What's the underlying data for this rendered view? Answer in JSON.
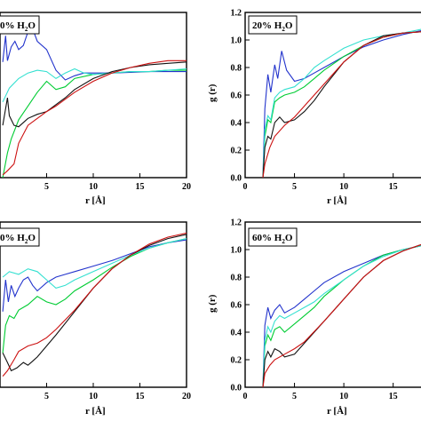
{
  "chart_data": [
    {
      "type": "line",
      "panel_label": "0% H",
      "panel_sub": "2",
      "panel_suffix": "O",
      "xlabel": "r [Å]",
      "ylabel": "",
      "xlim": [
        0,
        20
      ],
      "ylim": [
        0,
        1.2
      ],
      "xticks": [
        "5",
        "10",
        "15",
        "20"
      ],
      "yticks": [],
      "series": [
        {
          "color": "#2233cc",
          "x": [
            0.3,
            0.6,
            0.8,
            1.2,
            1.6,
            2.0,
            2.5,
            3.0,
            3.5,
            4.0,
            5.0,
            6.0,
            7.0,
            8.0,
            9.0,
            10.0,
            12.0,
            14.0,
            16.0,
            18.0,
            20.0
          ],
          "y": [
            0.84,
            1.03,
            0.85,
            0.95,
            0.99,
            0.93,
            0.96,
            1.06,
            1.08,
            0.99,
            0.93,
            0.78,
            0.71,
            0.74,
            0.76,
            0.76,
            0.76,
            0.765,
            0.77,
            0.77,
            0.77
          ]
        },
        {
          "color": "#00cc33",
          "x": [
            0.3,
            0.8,
            1.2,
            2.0,
            3.0,
            4.0,
            5.0,
            6.0,
            7.0,
            8.0,
            10.0,
            12.0,
            14.0,
            16.0,
            18.0,
            20.0
          ],
          "y": [
            0.0,
            0.18,
            0.28,
            0.42,
            0.52,
            0.62,
            0.7,
            0.64,
            0.66,
            0.72,
            0.75,
            0.76,
            0.77,
            0.77,
            0.78,
            0.78
          ]
        },
        {
          "color": "#33e0d0",
          "x": [
            0.3,
            1.0,
            2.0,
            3.0,
            4.0,
            5.0,
            6.0,
            7.0,
            8.0,
            9.0,
            10.0,
            12.0,
            14.0,
            16.0,
            18.0,
            20.0
          ],
          "y": [
            0.55,
            0.65,
            0.72,
            0.76,
            0.78,
            0.77,
            0.72,
            0.76,
            0.79,
            0.76,
            0.75,
            0.76,
            0.77,
            0.77,
            0.78,
            0.79
          ]
        },
        {
          "color": "#111111",
          "x": [
            0.3,
            0.8,
            1.0,
            1.5,
            2.0,
            3.0,
            4.0,
            5.0,
            6.0,
            7.0,
            8.0,
            10.0,
            12.0,
            14.0,
            16.0,
            18.0,
            20.0
          ],
          "y": [
            0.38,
            0.58,
            0.45,
            0.38,
            0.37,
            0.43,
            0.46,
            0.48,
            0.53,
            0.58,
            0.64,
            0.72,
            0.77,
            0.8,
            0.82,
            0.83,
            0.84
          ]
        },
        {
          "color": "#cc1111",
          "x": [
            0.3,
            0.8,
            1.5,
            2.0,
            3.0,
            4.0,
            5.0,
            6.0,
            7.0,
            8.0,
            10.0,
            12.0,
            14.0,
            16.0,
            18.0,
            20.0
          ],
          "y": [
            0.02,
            0.05,
            0.1,
            0.25,
            0.38,
            0.43,
            0.48,
            0.52,
            0.57,
            0.62,
            0.7,
            0.76,
            0.8,
            0.83,
            0.85,
            0.85
          ]
        }
      ]
    },
    {
      "type": "line",
      "panel_label": "20% H",
      "panel_sub": "2",
      "panel_suffix": "O",
      "xlabel": "r [Å]",
      "ylabel": "g (r)",
      "xlim": [
        0,
        18
      ],
      "ylim": [
        0,
        1.2
      ],
      "xticks": [
        "0",
        "5",
        "10",
        "15"
      ],
      "yticks": [
        "0.0",
        "0.2",
        "0.4",
        "0.6",
        "0.8",
        "1.0",
        "1.2"
      ],
      "series": [
        {
          "color": "#2233cc",
          "x": [
            1.8,
            2.0,
            2.3,
            2.6,
            3.0,
            3.3,
            3.7,
            4.2,
            5.0,
            6.0,
            7.0,
            8.0,
            10.0,
            12.0,
            14.0,
            16.0,
            18.0
          ],
          "y": [
            0.0,
            0.5,
            0.75,
            0.62,
            0.82,
            0.72,
            0.92,
            0.78,
            0.7,
            0.72,
            0.76,
            0.8,
            0.88,
            0.95,
            1.0,
            1.04,
            1.07
          ]
        },
        {
          "color": "#00cc33",
          "x": [
            1.8,
            2.0,
            2.3,
            2.6,
            3.0,
            3.5,
            4.0,
            5.0,
            6.0,
            7.0,
            8.0,
            10.0,
            12.0,
            14.0,
            16.0,
            18.0
          ],
          "y": [
            0.0,
            0.3,
            0.42,
            0.4,
            0.55,
            0.58,
            0.6,
            0.62,
            0.66,
            0.72,
            0.78,
            0.88,
            0.96,
            1.02,
            1.05,
            1.06
          ]
        },
        {
          "color": "#33e0d0",
          "x": [
            1.8,
            2.0,
            2.3,
            2.6,
            3.0,
            3.5,
            4.0,
            5.0,
            6.0,
            7.0,
            8.0,
            10.0,
            12.0,
            14.0,
            16.0,
            18.0
          ],
          "y": [
            0.0,
            0.35,
            0.45,
            0.42,
            0.58,
            0.62,
            0.64,
            0.66,
            0.72,
            0.8,
            0.85,
            0.94,
            1.0,
            1.03,
            1.05,
            1.08
          ]
        },
        {
          "color": "#111111",
          "x": [
            1.8,
            2.0,
            2.3,
            2.6,
            3.0,
            3.5,
            4.0,
            5.0,
            6.0,
            7.0,
            8.0,
            10.0,
            12.0,
            14.0,
            16.0,
            18.0
          ],
          "y": [
            0.0,
            0.22,
            0.3,
            0.28,
            0.4,
            0.44,
            0.4,
            0.42,
            0.48,
            0.56,
            0.66,
            0.84,
            0.96,
            1.03,
            1.05,
            1.06
          ]
        },
        {
          "color": "#cc1111",
          "x": [
            1.8,
            2.0,
            2.5,
            3.0,
            4.0,
            5.0,
            6.0,
            7.0,
            8.0,
            10.0,
            12.0,
            14.0,
            16.0,
            18.0
          ],
          "y": [
            0.0,
            0.1,
            0.22,
            0.3,
            0.38,
            0.44,
            0.52,
            0.6,
            0.68,
            0.84,
            0.96,
            1.02,
            1.05,
            1.06
          ]
        }
      ]
    },
    {
      "type": "line",
      "panel_label": "0% H",
      "panel_sub": "2",
      "panel_suffix": "O",
      "xlabel": "r [Å]",
      "ylabel": "",
      "xlim": [
        0,
        20
      ],
      "ylim": [
        0,
        1.2
      ],
      "xticks": [
        "5",
        "10",
        "15",
        "20"
      ],
      "yticks": [],
      "series": [
        {
          "color": "#2233cc",
          "x": [
            0.3,
            0.6,
            0.9,
            1.2,
            1.6,
            2.0,
            2.5,
            3.0,
            3.5,
            4.0,
            5.0,
            6.0,
            7.0,
            8.0,
            10.0,
            12.0,
            14.0,
            16.0,
            18.0,
            20.0
          ],
          "y": [
            0.55,
            0.78,
            0.62,
            0.74,
            0.66,
            0.72,
            0.78,
            0.8,
            0.74,
            0.7,
            0.76,
            0.8,
            0.82,
            0.84,
            0.88,
            0.92,
            0.97,
            1.02,
            1.05,
            1.07
          ]
        },
        {
          "color": "#00cc33",
          "x": [
            0.3,
            0.6,
            1.0,
            1.5,
            2.0,
            3.0,
            4.0,
            5.0,
            6.0,
            7.0,
            8.0,
            10.0,
            12.0,
            14.0,
            16.0,
            18.0,
            20.0
          ],
          "y": [
            0.25,
            0.45,
            0.52,
            0.5,
            0.56,
            0.6,
            0.66,
            0.62,
            0.6,
            0.64,
            0.7,
            0.78,
            0.87,
            0.95,
            1.01,
            1.05,
            1.08
          ]
        },
        {
          "color": "#33e0d0",
          "x": [
            0.3,
            1.0,
            2.0,
            3.0,
            4.0,
            5.0,
            6.0,
            7.0,
            8.0,
            10.0,
            12.0,
            14.0,
            16.0,
            18.0,
            20.0
          ],
          "y": [
            0.8,
            0.84,
            0.82,
            0.86,
            0.84,
            0.78,
            0.72,
            0.74,
            0.78,
            0.84,
            0.9,
            0.96,
            1.01,
            1.05,
            1.08
          ]
        },
        {
          "color": "#111111",
          "x": [
            0.3,
            0.8,
            1.2,
            1.8,
            2.5,
            3.0,
            3.5,
            4.0,
            5.0,
            6.0,
            8.0,
            10.0,
            12.0,
            14.0,
            16.0,
            18.0,
            20.0
          ],
          "y": [
            0.25,
            0.18,
            0.12,
            0.14,
            0.18,
            0.16,
            0.19,
            0.22,
            0.3,
            0.38,
            0.55,
            0.72,
            0.86,
            0.96,
            1.03,
            1.08,
            1.11
          ]
        },
        {
          "color": "#cc1111",
          "x": [
            0.3,
            0.8,
            1.5,
            2.0,
            3.0,
            4.0,
            5.0,
            6.0,
            8.0,
            10.0,
            12.0,
            14.0,
            16.0,
            18.0,
            20.0
          ],
          "y": [
            0.08,
            0.12,
            0.2,
            0.26,
            0.3,
            0.32,
            0.36,
            0.42,
            0.56,
            0.72,
            0.86,
            0.96,
            1.04,
            1.09,
            1.12
          ]
        }
      ]
    },
    {
      "type": "line",
      "panel_label": "60% H",
      "panel_sub": "2",
      "panel_suffix": "O",
      "xlabel": "r [Å]",
      "ylabel": "g (r)",
      "xlim": [
        0,
        18
      ],
      "ylim": [
        0,
        1.2
      ],
      "xticks": [
        "0",
        "5",
        "10",
        "15"
      ],
      "yticks": [
        "0.0",
        "0.2",
        "0.4",
        "0.6",
        "0.8",
        "1.0",
        "1.2"
      ],
      "series": [
        {
          "color": "#2233cc",
          "x": [
            1.8,
            2.0,
            2.3,
            2.6,
            3.0,
            3.5,
            4.0,
            5.0,
            6.0,
            7.0,
            8.0,
            10.0,
            12.0,
            14.0,
            16.0,
            18.0
          ],
          "y": [
            0.0,
            0.45,
            0.58,
            0.5,
            0.56,
            0.6,
            0.54,
            0.58,
            0.64,
            0.7,
            0.76,
            0.84,
            0.9,
            0.96,
            1.0,
            1.03
          ]
        },
        {
          "color": "#00cc33",
          "x": [
            1.8,
            2.0,
            2.3,
            2.6,
            3.0,
            3.5,
            4.0,
            5.0,
            6.0,
            7.0,
            8.0,
            10.0,
            12.0,
            14.0,
            16.0,
            18.0
          ],
          "y": [
            0.0,
            0.3,
            0.38,
            0.34,
            0.42,
            0.44,
            0.4,
            0.46,
            0.52,
            0.58,
            0.66,
            0.78,
            0.88,
            0.96,
            1.0,
            1.03
          ]
        },
        {
          "color": "#33e0d0",
          "x": [
            1.8,
            2.0,
            2.3,
            2.6,
            3.0,
            3.5,
            4.0,
            5.0,
            6.0,
            7.0,
            8.0,
            10.0,
            12.0,
            14.0,
            16.0,
            18.0
          ],
          "y": [
            0.0,
            0.34,
            0.44,
            0.4,
            0.48,
            0.52,
            0.5,
            0.54,
            0.58,
            0.62,
            0.68,
            0.78,
            0.88,
            0.95,
            1.0,
            1.03
          ]
        },
        {
          "color": "#111111",
          "x": [
            1.8,
            2.0,
            2.3,
            2.6,
            3.0,
            3.5,
            4.0,
            5.0,
            6.0,
            8.0,
            10.0,
            12.0,
            14.0,
            16.0,
            18.0
          ],
          "y": [
            0.0,
            0.2,
            0.26,
            0.22,
            0.28,
            0.26,
            0.22,
            0.24,
            0.32,
            0.48,
            0.64,
            0.8,
            0.92,
            0.99,
            1.04
          ]
        },
        {
          "color": "#cc1111",
          "x": [
            1.8,
            2.0,
            2.5,
            3.0,
            4.0,
            5.0,
            6.0,
            8.0,
            10.0,
            12.0,
            14.0,
            16.0,
            18.0
          ],
          "y": [
            0.0,
            0.1,
            0.16,
            0.2,
            0.24,
            0.28,
            0.33,
            0.48,
            0.64,
            0.8,
            0.92,
            0.99,
            1.04
          ]
        }
      ]
    }
  ]
}
